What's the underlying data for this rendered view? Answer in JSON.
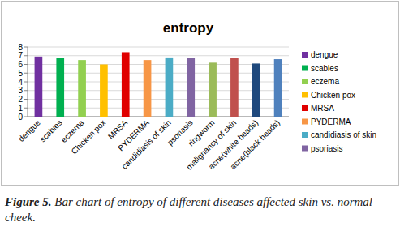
{
  "chart_data": {
    "type": "bar",
    "title": "entropy",
    "categories": [
      "dengue",
      "scabies",
      "eczema",
      "Chicken pox",
      "MRSA",
      "PYDERMA",
      "candidiasis of skin",
      "psoriasis",
      "ringworm",
      "malignancy of skin",
      "acne(white heads)",
      "acne(black heads)"
    ],
    "values": [
      6.9,
      6.7,
      6.5,
      6.0,
      7.4,
      6.5,
      6.8,
      6.7,
      6.2,
      6.7,
      6.1,
      6.6
    ],
    "colors": [
      "#7030a0",
      "#00b050",
      "#92d050",
      "#ffc000",
      "#e00000",
      "#f79646",
      "#4bacc6",
      "#8064a2",
      "#9bbb59",
      "#c0504d",
      "#1f497d",
      "#4f81bd"
    ],
    "ylim": [
      0,
      8
    ],
    "yticks": [
      0,
      1,
      2,
      3,
      4,
      5,
      6,
      7,
      8
    ],
    "grid": true,
    "legend": "right",
    "caption": {
      "label": "Figure 5.",
      "text": "Bar chart of entropy of different diseases affected skin vs. normal cheek."
    }
  }
}
